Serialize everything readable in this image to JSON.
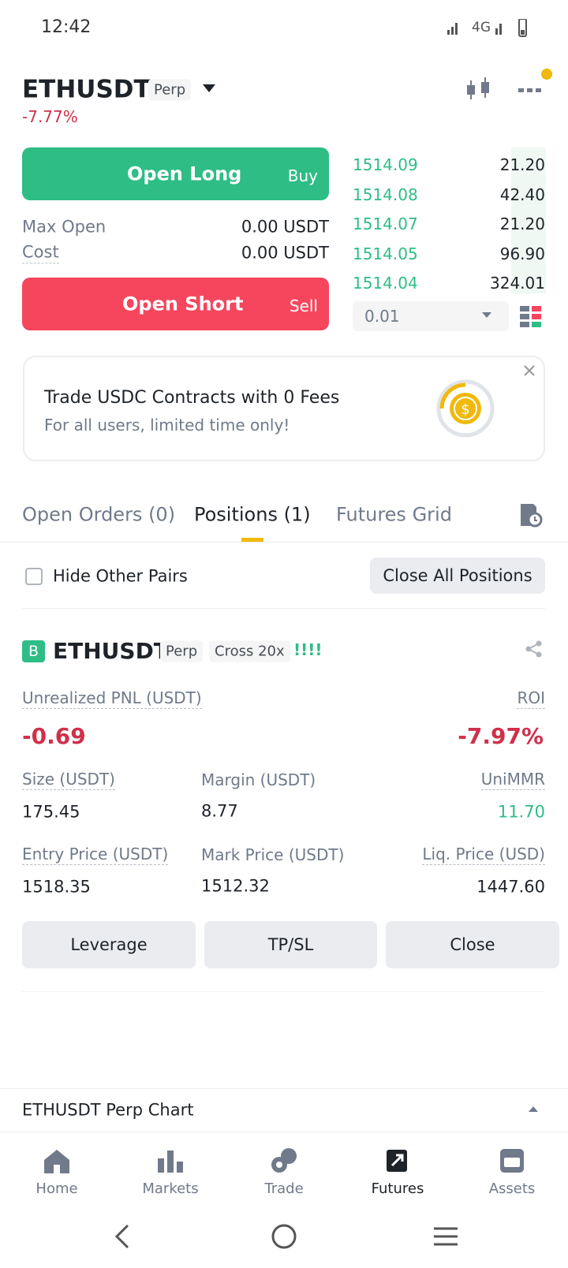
{
  "status_bar": {
    "time": "12:42",
    "network": "4G"
  },
  "header": {
    "symbol": "ETHUSDT",
    "contract": "Perp",
    "change": "-7.77%"
  },
  "trade_panel": {
    "open_long": "Open Long",
    "buy": "Buy",
    "max_open_label": "Max Open",
    "max_open_value": "0.00 USDT",
    "cost_label": "Cost",
    "cost_value": "0.00 USDT",
    "open_short": "Open Short",
    "sell": "Sell"
  },
  "order_book": {
    "rows": [
      [
        "1514.09",
        "21.20"
      ],
      [
        "1514.08",
        "42.40"
      ],
      [
        "1514.07",
        "21.20"
      ],
      [
        "1514.05",
        "96.90"
      ],
      [
        "1514.04",
        "324.01"
      ]
    ],
    "precision": "0.01"
  },
  "promo": {
    "title": "Trade USDC Contracts with 0 Fees",
    "subtitle": "For all users, limited time only!"
  },
  "tabs": {
    "items": [
      "Open Orders (0)",
      "Positions (1)",
      "Futures Grid"
    ],
    "active": 1
  },
  "positions_bar": {
    "hide_other_pairs": "Hide Other Pairs",
    "close_all": "Close All Positions"
  },
  "position": {
    "side": "B",
    "symbol": "ETHUSDT",
    "contract": "Perp",
    "margin_mode": "Cross 20x",
    "marker": "!!!!",
    "unrealized_pnl": {
      "label": "Unrealized PNL (USDT)",
      "value": "-0.69"
    },
    "roi": {
      "label": "ROI",
      "value": "-7.97%"
    },
    "size": {
      "label": "Size (USDT)",
      "value": "175.45"
    },
    "margin": {
      "label": "Margin (USDT)",
      "value": "8.77"
    },
    "unimmr": {
      "label": "UniMMR",
      "value": "11.70"
    },
    "entry_price": {
      "label": "Entry Price (USDT)",
      "value": "1518.35"
    },
    "mark_price": {
      "label": "Mark Price (USDT)",
      "value": "1512.32"
    },
    "liq_price": {
      "label": "Liq. Price (USD)",
      "value": "1447.60"
    },
    "buttons": [
      "Leverage",
      "TP/SL",
      "Close"
    ]
  },
  "chart_bar": {
    "label": "ETHUSDT Perp Chart"
  },
  "nav": {
    "items": [
      "Home",
      "Markets",
      "Trade",
      "Futures",
      "Assets"
    ],
    "active": 3
  }
}
